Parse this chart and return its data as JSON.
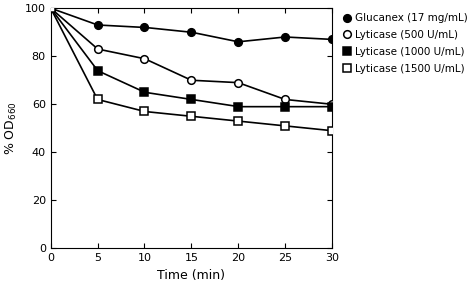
{
  "title": "",
  "xlabel": "Time (min)",
  "ylabel_latex": "% OD$_{660}$",
  "xlim": [
    0,
    30
  ],
  "ylim": [
    0,
    100
  ],
  "xticks": [
    0,
    5,
    10,
    15,
    20,
    25,
    30
  ],
  "yticks": [
    0,
    20,
    40,
    60,
    80,
    100
  ],
  "series": [
    {
      "label": "Glucanex (17 mg/mL)",
      "marker": "o",
      "markerfacecolor": "black",
      "markeredgecolor": "black",
      "x": [
        0,
        5,
        10,
        15,
        20,
        25,
        30
      ],
      "y": [
        100,
        93,
        92,
        90,
        86,
        88,
        87
      ]
    },
    {
      "label": "Lyticase (500 U/mL)",
      "marker": "o",
      "markerfacecolor": "white",
      "markeredgecolor": "black",
      "x": [
        0,
        5,
        10,
        15,
        20,
        25,
        30
      ],
      "y": [
        100,
        83,
        79,
        70,
        69,
        62,
        60
      ]
    },
    {
      "label": "Lyticase (1000 U/mL)",
      "marker": "s",
      "markerfacecolor": "black",
      "markeredgecolor": "black",
      "x": [
        0,
        5,
        10,
        15,
        20,
        25,
        30
      ],
      "y": [
        100,
        74,
        65,
        62,
        59,
        59,
        59
      ]
    },
    {
      "label": "Lyticase (1500 U/mL)",
      "marker": "s",
      "markerfacecolor": "white",
      "markeredgecolor": "black",
      "x": [
        0,
        5,
        10,
        15,
        20,
        25,
        30
      ],
      "y": [
        100,
        62,
        57,
        55,
        53,
        51,
        49
      ]
    }
  ],
  "background_color": "#ffffff",
  "line_color": "black",
  "markersize": 5.5,
  "linewidth": 1.2,
  "legend_fontsize": 7.5,
  "tick_labelsize": 8,
  "axis_labelsize": 9
}
